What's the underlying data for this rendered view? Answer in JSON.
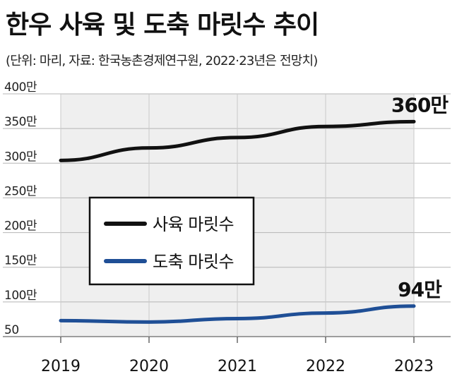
{
  "header": {
    "title": "한우 사육 및 도축 마릿수 추이",
    "subtitle": "(단위: 마리, 자료: 한국농촌경제연구원, 2022·23년은 전망치)"
  },
  "chart_data": {
    "type": "line",
    "title": "한우 사육 및 도축 마릿수 추이",
    "subtitle": "(단위: 마리, 자료: 한국농촌경제연구원, 2022·23년은 전망치)",
    "x": [
      "2019",
      "2020",
      "2021",
      "2022",
      "2023"
    ],
    "y_ticks": [
      {
        "value": 50,
        "label": "50"
      },
      {
        "value": 100,
        "label": "100만"
      },
      {
        "value": 150,
        "label": "150만"
      },
      {
        "value": 200,
        "label": "200만"
      },
      {
        "value": 250,
        "label": "250만"
      },
      {
        "value": 300,
        "label": "300만"
      },
      {
        "value": 350,
        "label": "350만"
      },
      {
        "value": 400,
        "label": "400만"
      }
    ],
    "ylim": [
      50,
      400
    ],
    "grid": true,
    "legend_position": "center-left",
    "series": [
      {
        "name": "사육 마릿수",
        "color": "#111111",
        "values": [
          304,
          322,
          337,
          353,
          360
        ],
        "end_label": "360만"
      },
      {
        "name": "도축 마릿수",
        "color": "#1f4f96",
        "values": [
          73,
          71,
          76,
          84,
          94
        ],
        "end_label": "94만"
      }
    ]
  }
}
